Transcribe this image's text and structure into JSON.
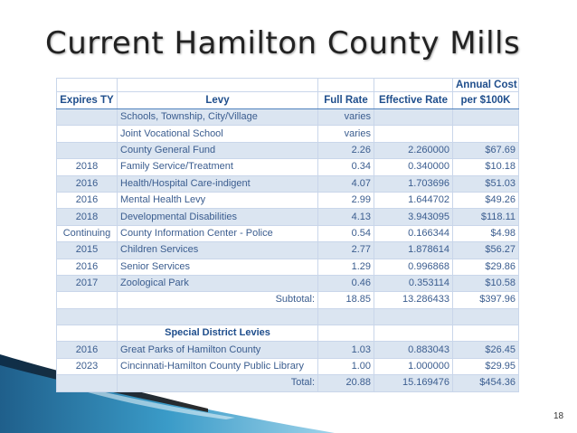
{
  "slide": {
    "title": "Current Hamilton County Mills",
    "page_number": "18"
  },
  "table": {
    "headers": {
      "expires": "Expires TY",
      "levy": "Levy",
      "full_rate": "Full Rate",
      "effective_rate": "Effective Rate",
      "annual_cost_line1": "Annual Cost",
      "annual_cost_line2": "per $100K"
    },
    "rows": [
      {
        "expires": "",
        "levy": "Schools, Township, City/Village",
        "full_rate": "varies",
        "effective_rate": "",
        "annual_cost": ""
      },
      {
        "expires": "",
        "levy": "Joint Vocational School",
        "full_rate": "varies",
        "effective_rate": "",
        "annual_cost": ""
      },
      {
        "expires": "",
        "levy": "County General Fund",
        "full_rate": "2.26",
        "effective_rate": "2.260000",
        "annual_cost": "$67.69"
      },
      {
        "expires": "2018",
        "levy": "Family Service/Treatment",
        "full_rate": "0.34",
        "effective_rate": "0.340000",
        "annual_cost": "$10.18"
      },
      {
        "expires": "2016",
        "levy": "Health/Hospital Care-indigent",
        "full_rate": "4.07",
        "effective_rate": "1.703696",
        "annual_cost": "$51.03"
      },
      {
        "expires": "2016",
        "levy": "Mental Health Levy",
        "full_rate": "2.99",
        "effective_rate": "1.644702",
        "annual_cost": "$49.26"
      },
      {
        "expires": "2018",
        "levy": "Developmental Disabilities",
        "full_rate": "4.13",
        "effective_rate": "3.943095",
        "annual_cost": "$118.11"
      },
      {
        "expires": "Continuing",
        "levy": "County Information Center - Police",
        "full_rate": "0.54",
        "effective_rate": "0.166344",
        "annual_cost": "$4.98"
      },
      {
        "expires": "2015",
        "levy": "Children Services",
        "full_rate": "2.77",
        "effective_rate": "1.878614",
        "annual_cost": "$56.27"
      },
      {
        "expires": "2016",
        "levy": "Senior Services",
        "full_rate": "1.29",
        "effective_rate": "0.996868",
        "annual_cost": "$29.86"
      },
      {
        "expires": "2017",
        "levy": "Zoological Park",
        "full_rate": "0.46",
        "effective_rate": "0.353114",
        "annual_cost": "$10.58"
      }
    ],
    "subtotal": {
      "label": "Subtotal:",
      "full_rate": "18.85",
      "effective_rate": "13.286433",
      "annual_cost": "$397.96"
    },
    "special_heading": "Special District Levies",
    "special_rows": [
      {
        "expires": "2016",
        "levy": "Great Parks of Hamilton County",
        "full_rate": "1.03",
        "effective_rate": "0.883043",
        "annual_cost": "$26.45"
      },
      {
        "expires": "2023",
        "levy": "Cincinnati-Hamilton County Public Library",
        "full_rate": "1.00",
        "effective_rate": "1.000000",
        "annual_cost": "$29.95"
      }
    ],
    "total": {
      "label": "Total:",
      "full_rate": "20.88",
      "effective_rate": "15.169476",
      "annual_cost": "$454.36"
    }
  }
}
